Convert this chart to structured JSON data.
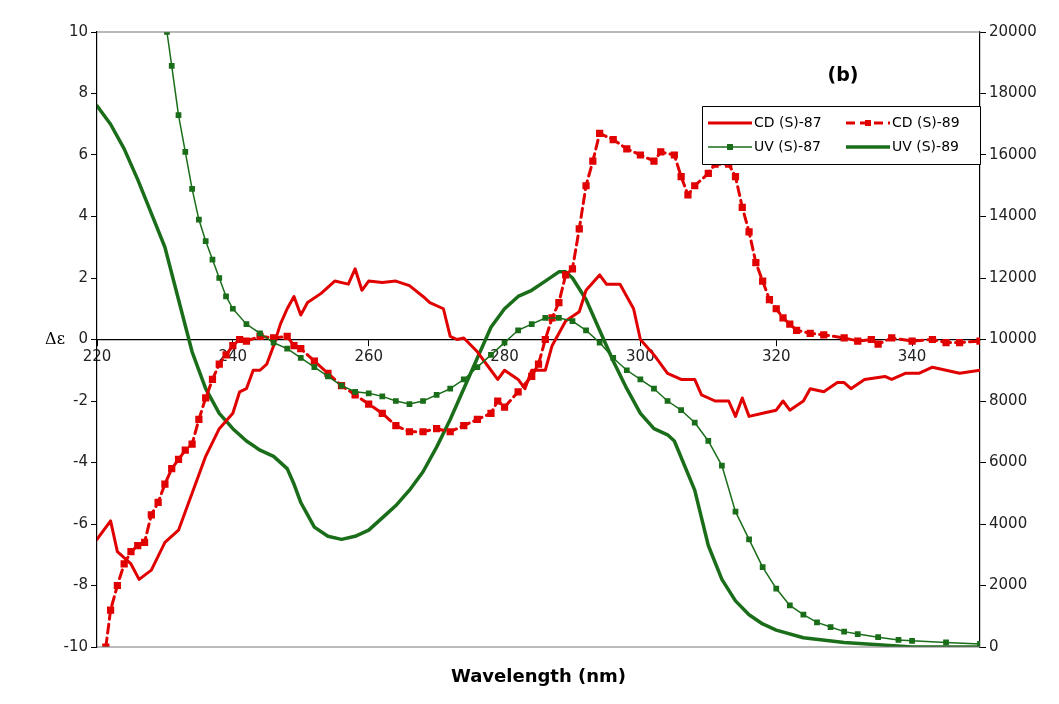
{
  "chart_data": {
    "type": "line",
    "title": "(b)",
    "xlabel": "Wavelength (nm)",
    "ylabel": "Δε",
    "xlim": [
      220,
      350
    ],
    "xticks": [
      220,
      240,
      260,
      280,
      300,
      320,
      340
    ],
    "ylim": [
      -10,
      10
    ],
    "yticks": [
      -10,
      -8,
      -6,
      -4,
      -2,
      0,
      2,
      4,
      6,
      8,
      10
    ],
    "y2lim": [
      0,
      20000
    ],
    "y2ticks": [
      0,
      2000,
      4000,
      6000,
      8000,
      10000,
      12000,
      14000,
      16000,
      18000,
      20000
    ],
    "legend": "top right",
    "series": [
      {
        "name": "CD (S)-87",
        "color": "#e00000",
        "marker": "none",
        "line_style": "solid",
        "x": [
          220,
          222,
          223,
          225,
          226.2,
          228,
          230,
          232,
          234,
          236,
          238,
          240,
          241,
          242,
          243,
          244,
          245,
          246,
          247,
          248,
          249,
          250,
          251,
          253,
          255,
          257,
          258,
          259,
          260,
          262,
          264,
          266,
          268,
          269,
          271,
          272,
          273,
          274,
          276,
          278,
          279,
          280,
          282,
          283,
          284,
          286,
          287,
          289,
          291,
          292,
          294,
          295,
          297,
          299,
          300,
          302,
          304,
          306,
          308,
          309,
          311,
          313,
          314,
          315,
          316,
          318,
          320,
          321,
          322,
          324,
          325,
          327,
          329,
          330,
          331,
          333,
          336,
          337,
          339,
          341,
          343,
          345,
          347,
          350
        ],
        "values": [
          -6.5,
          -5.9,
          -6.9,
          -7.3,
          -7.8,
          -7.5,
          -6.6,
          -6.2,
          -5.0,
          -3.8,
          -2.9,
          -2.4,
          -1.7,
          -1.6,
          -1.0,
          -1.0,
          -0.8,
          -0.2,
          0.5,
          1.0,
          1.4,
          0.8,
          1.2,
          1.5,
          1.9,
          1.8,
          2.3,
          1.6,
          1.9,
          1.85,
          1.9,
          1.75,
          1.4,
          1.2,
          1.0,
          0.1,
          0.0,
          0.05,
          -0.4,
          -1.0,
          -1.3,
          -1.0,
          -1.3,
          -1.6,
          -1.0,
          -1.0,
          -0.2,
          0.6,
          0.9,
          1.6,
          2.1,
          1.8,
          1.8,
          1.0,
          0.0,
          -0.5,
          -1.1,
          -1.3,
          -1.3,
          -1.8,
          -2.0,
          -2.0,
          -2.5,
          -1.9,
          -2.5,
          -2.4,
          -2.3,
          -2.0,
          -2.3,
          -2.0,
          -1.6,
          -1.7,
          -1.4,
          -1.4,
          -1.6,
          -1.3,
          -1.2,
          -1.3,
          -1.1,
          -1.1,
          -0.9,
          -1.0,
          -1.1,
          -1.0
        ]
      },
      {
        "name": "CD (S)-89",
        "color": "#e00000",
        "marker": "square",
        "line_style": "dashed",
        "x": [
          221.3,
          222,
          223,
          224,
          225,
          226,
          227,
          228,
          229,
          230,
          231,
          232,
          233,
          234,
          235,
          236,
          237,
          238,
          239,
          240,
          241,
          242,
          244,
          246,
          248,
          249,
          250,
          252,
          254,
          256,
          258,
          260,
          262,
          264,
          266,
          268,
          270,
          272,
          274,
          276,
          278,
          279,
          280,
          282,
          284,
          285,
          286,
          287,
          288,
          289,
          290,
          291,
          292,
          293,
          294,
          296,
          298,
          300,
          302,
          303,
          305,
          306,
          307,
          308,
          310,
          311,
          313,
          314,
          315,
          316,
          317,
          318,
          319,
          320,
          321,
          322,
          323,
          325,
          327,
          330,
          332,
          334,
          335,
          337,
          340,
          343,
          345,
          347,
          350
        ],
        "values": [
          -10,
          -8.8,
          -8.0,
          -7.3,
          -6.9,
          -6.7,
          -6.6,
          -5.7,
          -5.3,
          -4.7,
          -4.2,
          -3.9,
          -3.6,
          -3.4,
          -2.6,
          -1.9,
          -1.3,
          -0.8,
          -0.5,
          -0.2,
          0.0,
          -0.05,
          0.1,
          0.05,
          0.1,
          -0.2,
          -0.3,
          -0.7,
          -1.1,
          -1.5,
          -1.8,
          -2.1,
          -2.4,
          -2.8,
          -3.0,
          -3.0,
          -2.9,
          -3.0,
          -2.8,
          -2.6,
          -2.4,
          -2.0,
          -2.2,
          -1.7,
          -1.2,
          -0.8,
          0.0,
          0.7,
          1.2,
          2.1,
          2.3,
          3.6,
          5.0,
          5.8,
          6.7,
          6.5,
          6.2,
          6.0,
          5.8,
          6.1,
          6.0,
          5.3,
          4.7,
          5.0,
          5.4,
          5.7,
          5.7,
          5.3,
          4.3,
          3.5,
          2.5,
          1.9,
          1.3,
          1.0,
          0.7,
          0.5,
          0.3,
          0.2,
          0.15,
          0.05,
          -0.05,
          0.0,
          -0.15,
          0.05,
          -0.05,
          0.0,
          -0.1,
          -0.1,
          -0.05
        ]
      },
      {
        "name": "UV (S)-87",
        "color": "#1a6e1a",
        "marker": "square",
        "line_style": "solid",
        "axis": "y2",
        "x": [
          230.3,
          231,
          232,
          233,
          234,
          235,
          236,
          237,
          238,
          239,
          240,
          242,
          244,
          246,
          248,
          250,
          252,
          254,
          256,
          258,
          260,
          262,
          264,
          266,
          268,
          270,
          272,
          274,
          276,
          278,
          280,
          282,
          284,
          286,
          288,
          290,
          292,
          294,
          296,
          298,
          300,
          302,
          304,
          306,
          308,
          310,
          312,
          314,
          316,
          318,
          320,
          322,
          324,
          326,
          328,
          330,
          332,
          335,
          338,
          340,
          345,
          350
        ],
        "values": [
          20000,
          18900,
          17300,
          16100,
          14900,
          13900,
          13200,
          12600,
          12000,
          11400,
          11000,
          10500,
          10200,
          9900,
          9700,
          9400,
          9100,
          8800,
          8500,
          8300,
          8250,
          8150,
          8000,
          7900,
          8000,
          8200,
          8400,
          8700,
          9100,
          9500,
          9900,
          10300,
          10500,
          10700,
          10700,
          10600,
          10300,
          9900,
          9400,
          9000,
          8700,
          8400,
          8000,
          7700,
          7300,
          6700,
          5900,
          4400,
          3500,
          2600,
          1900,
          1350,
          1050,
          800,
          650,
          500,
          420,
          320,
          230,
          200,
          150,
          100
        ]
      },
      {
        "name": "UV (S)-89",
        "color": "#1a6e1a",
        "marker": "none",
        "line_style": "solid",
        "axis": "y2",
        "x": [
          220,
          222,
          224,
          226,
          228,
          230,
          232,
          234,
          236,
          238,
          240,
          242,
          244,
          246,
          248,
          249,
          250,
          252,
          254,
          256,
          258,
          260,
          262,
          264,
          266,
          268,
          270,
          272,
          274,
          276,
          278,
          280,
          282,
          284,
          286,
          288,
          289,
          290,
          292,
          294,
          296,
          298,
          300,
          302,
          304,
          305,
          308,
          310,
          312,
          314,
          316,
          318,
          320,
          324,
          330,
          340,
          350
        ],
        "values": [
          17600,
          17000,
          16200,
          15200,
          14100,
          13000,
          11300,
          9600,
          8400,
          7600,
          7100,
          6700,
          6400,
          6200,
          5800,
          5300,
          4700,
          3900,
          3600,
          3500,
          3600,
          3800,
          4200,
          4600,
          5100,
          5700,
          6500,
          7400,
          8400,
          9400,
          10400,
          11000,
          11400,
          11600,
          11900,
          12200,
          12200,
          12000,
          11300,
          10300,
          9300,
          8400,
          7600,
          7100,
          6900,
          6700,
          5100,
          3300,
          2200,
          1500,
          1050,
          750,
          550,
          300,
          150,
          0,
          0
        ]
      }
    ]
  }
}
